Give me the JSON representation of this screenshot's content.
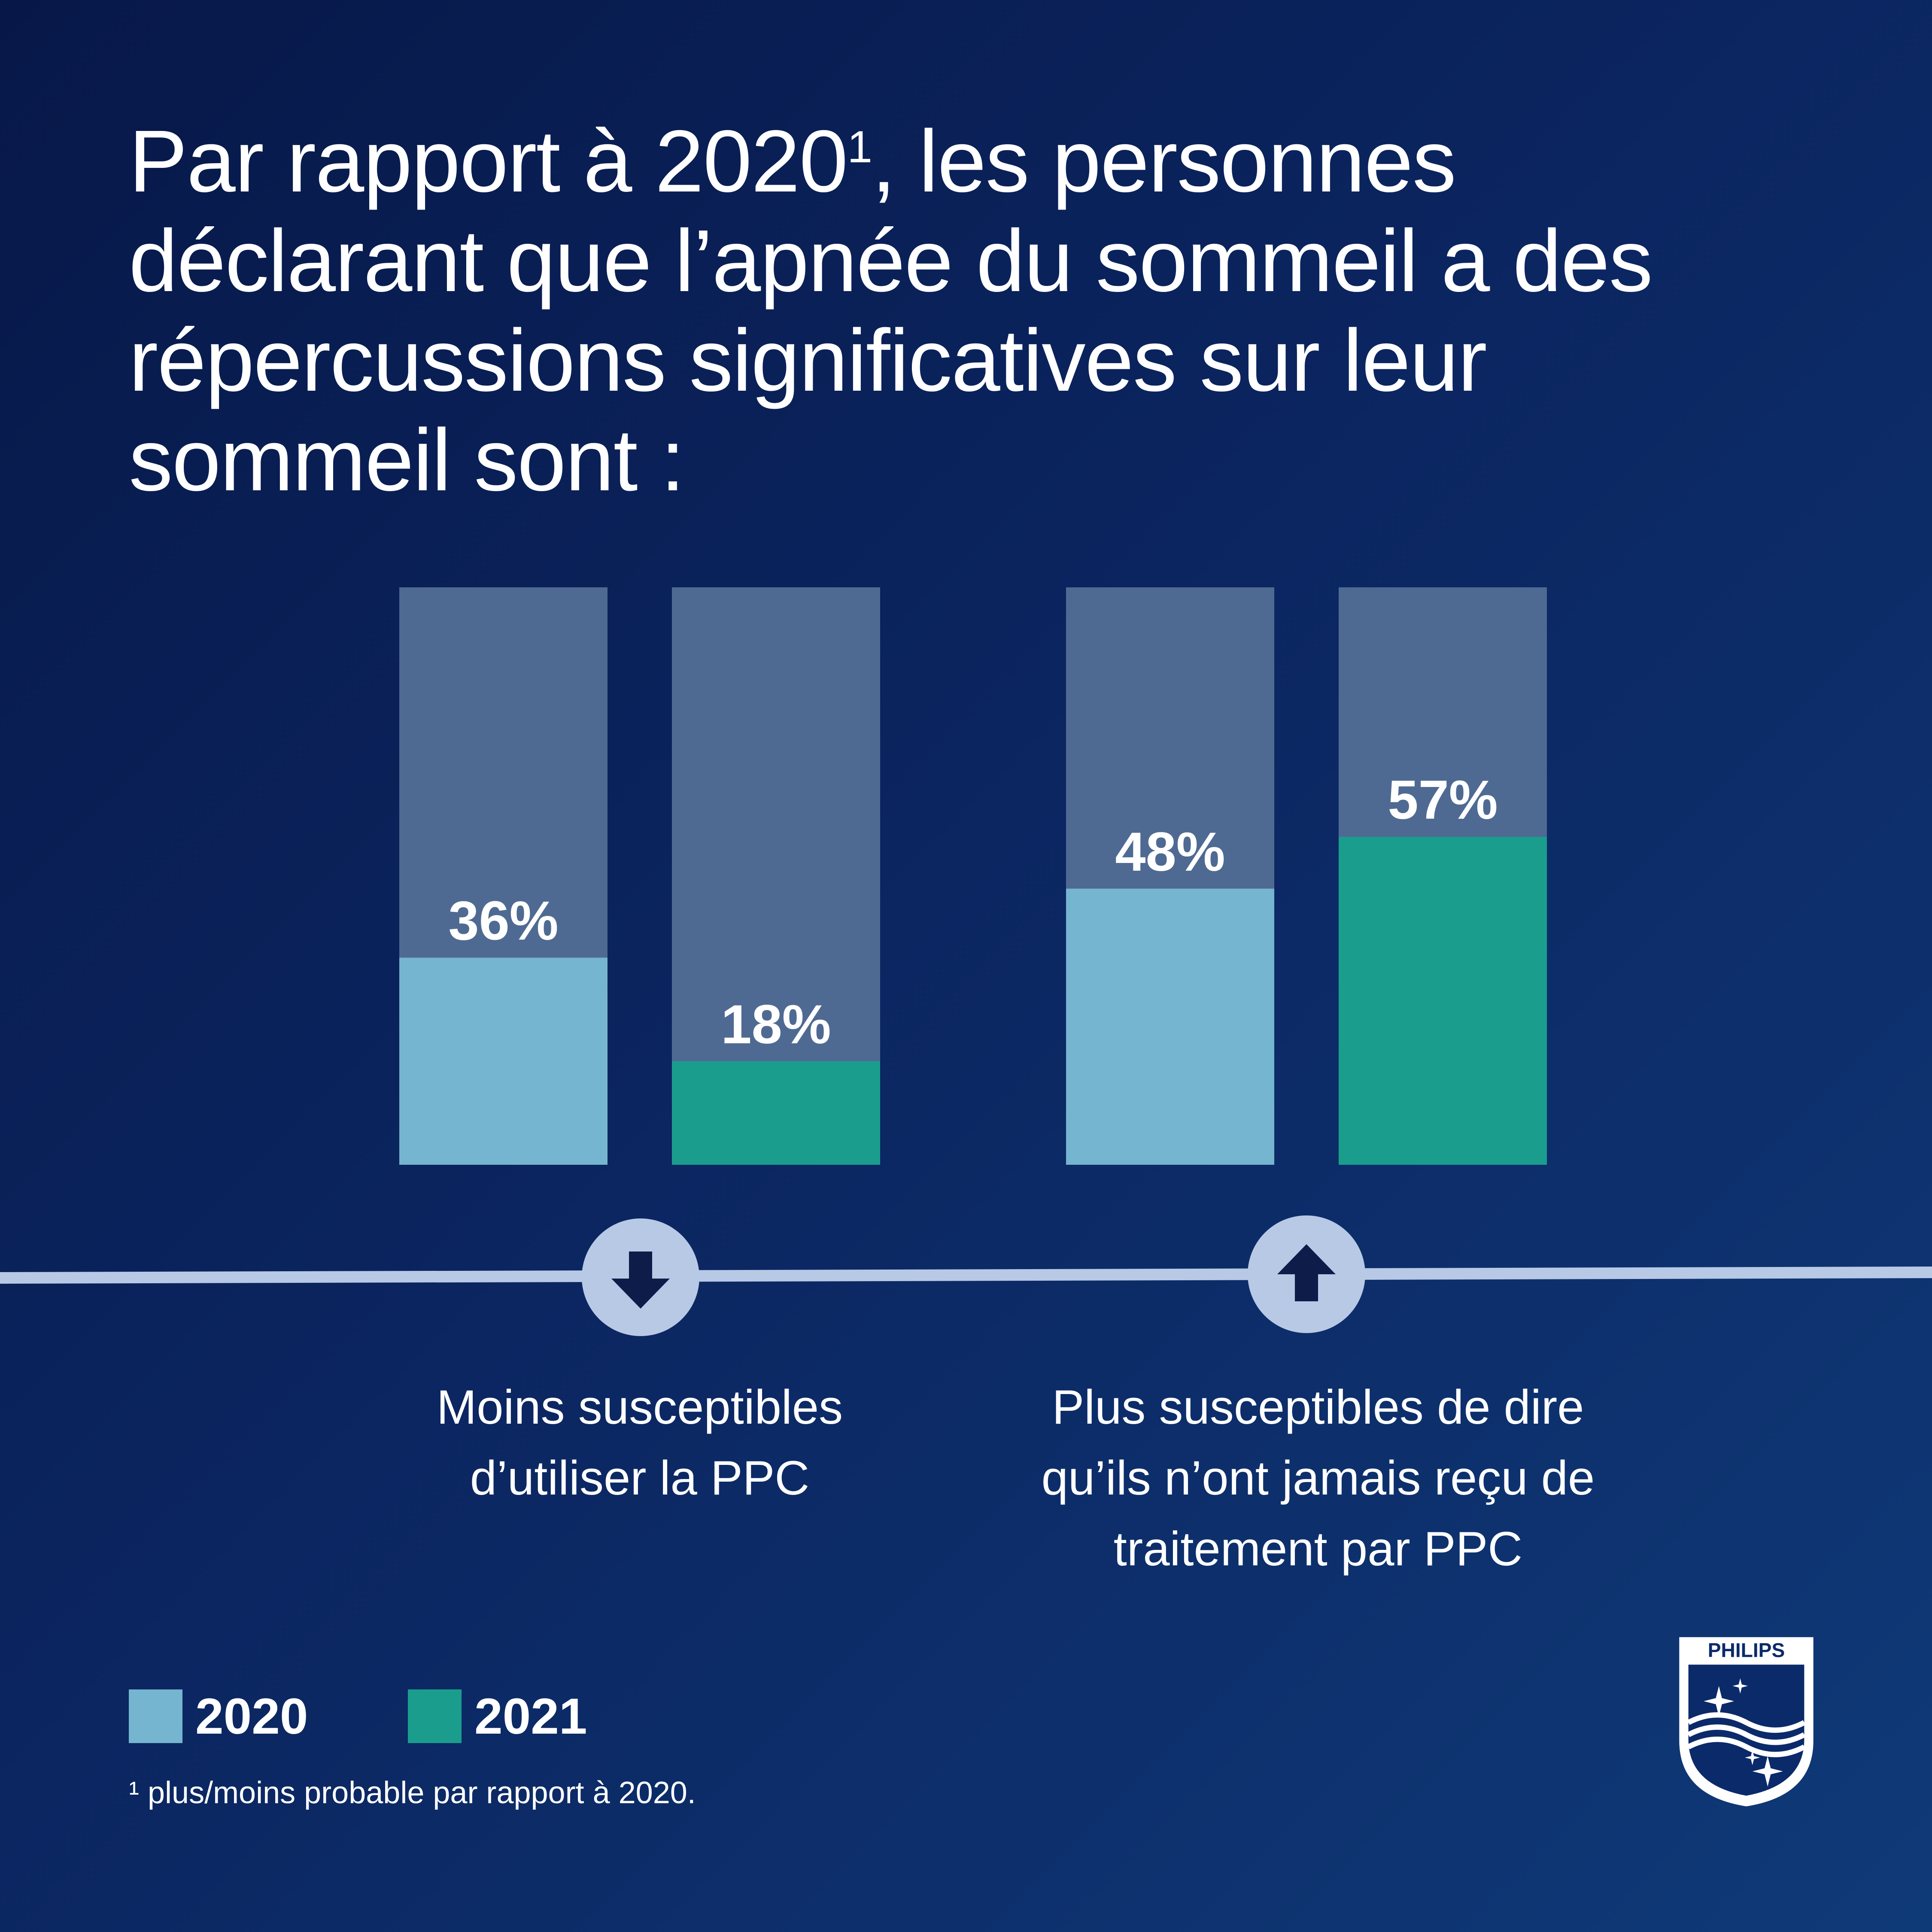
{
  "title": {
    "before": "Par rapport à 2020",
    "superscript": "1",
    "after": ", les personnes déclarant que l’apnée du sommeil a des répercussions significatives sur leur sommeil sont :"
  },
  "chart_data": {
    "type": "bar",
    "ylim": [
      0,
      100
    ],
    "categories": [
      "Moins susceptibles d’utiliser la PPC",
      "Plus susceptibles de dire qu’ils n’ont jamais reçu de traitement par PPC"
    ],
    "series": [
      {
        "name": "2020",
        "values": [
          36,
          48
        ]
      },
      {
        "name": "2021",
        "values": [
          18,
          57
        ]
      }
    ],
    "value_labels": [
      [
        "36%",
        "18%"
      ],
      [
        "48%",
        "57%"
      ]
    ],
    "legend": {
      "placement": "bottom-left"
    },
    "grid": false
  },
  "groups": [
    {
      "direction": "down",
      "icon": "arrow-down-icon",
      "caption": [
        "Moins susceptibles",
        "d’utiliser la PPC"
      ]
    },
    {
      "direction": "up",
      "icon": "arrow-up-icon",
      "caption": [
        "Plus susceptibles de dire",
        "qu’ils n’ont jamais reçu de",
        "traitement par PPC"
      ]
    }
  ],
  "legend": [
    {
      "label": "2020",
      "color": "#75b5cf"
    },
    {
      "label": "2021",
      "color": "#1b9d8e"
    }
  ],
  "footnote": "¹ plus/moins probable par rapport à 2020.",
  "logo": {
    "text": "PHILIPS",
    "icon": "philips-shield-logo"
  },
  "colors": {
    "background_dark": "#071848",
    "background_light": "#0f3a78",
    "bar_track": "#4f6a92",
    "series_2020": "#75b5cf",
    "series_2021": "#1b9d8e",
    "timeline": "#b8c9e6",
    "arrow": "#0e1c4a"
  }
}
